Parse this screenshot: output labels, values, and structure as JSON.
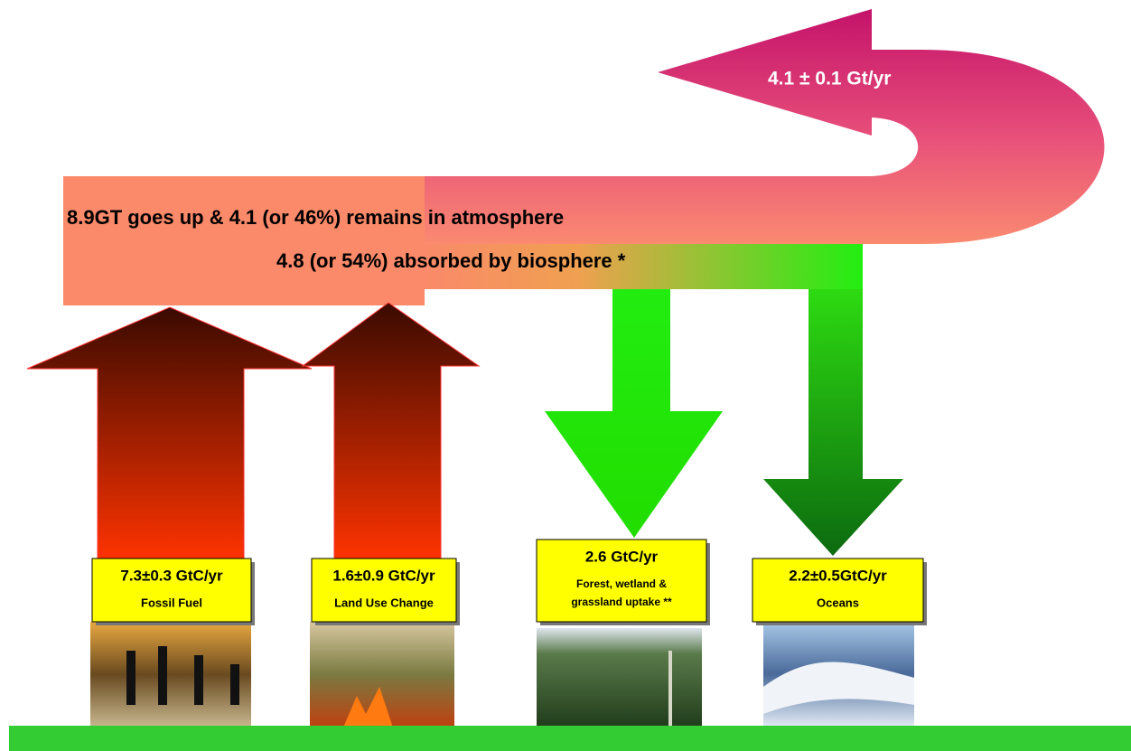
{
  "return_flow": "4.1 ± 0.1 Gt/yr",
  "summary": [
    "8.9GT goes up & 4.1 (or 46%) remains in atmosphere",
    "4.8 (or 54%) absorbed by biosphere *"
  ],
  "boxes": [
    {
      "rate": "7.3±0.3 GtC/yr",
      "label": "Fossil Fuel"
    },
    {
      "rate": "1.6±0.9 GtC/yr",
      "label": "Land Use Change"
    },
    {
      "rate": "2.6 GtC/yr",
      "label": "Forest, wetland & grassland uptake **"
    },
    {
      "rate": "2.2±0.5GtC/yr",
      "label": "Oceans"
    }
  ]
}
